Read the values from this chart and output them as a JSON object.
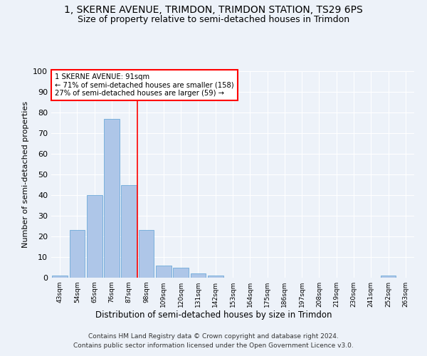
{
  "title": "1, SKERNE AVENUE, TRIMDON, TRIMDON STATION, TS29 6PS",
  "subtitle": "Size of property relative to semi-detached houses in Trimdon",
  "xlabel": "Distribution of semi-detached houses by size in Trimdon",
  "ylabel": "Number of semi-detached properties",
  "footnote1": "Contains HM Land Registry data © Crown copyright and database right 2024.",
  "footnote2": "Contains public sector information licensed under the Open Government Licence v3.0.",
  "bin_labels": [
    "43sqm",
    "54sqm",
    "65sqm",
    "76sqm",
    "87sqm",
    "98sqm",
    "109sqm",
    "120sqm",
    "131sqm",
    "142sqm",
    "153sqm",
    "164sqm",
    "175sqm",
    "186sqm",
    "197sqm",
    "208sqm",
    "219sqm",
    "230sqm",
    "241sqm",
    "252sqm",
    "263sqm"
  ],
  "bar_values": [
    1,
    23,
    40,
    77,
    45,
    23,
    6,
    5,
    2,
    1,
    0,
    0,
    0,
    0,
    0,
    0,
    0,
    0,
    0,
    1,
    0
  ],
  "bar_color": "#aec6e8",
  "bar_edge_color": "#5a9fd4",
  "vline_x": 4.5,
  "annotation_text": "1 SKERNE AVENUE: 91sqm\n← 71% of semi-detached houses are smaller (158)\n27% of semi-detached houses are larger (59) →",
  "annotation_box_color": "white",
  "annotation_box_edge_color": "red",
  "vline_color": "red",
  "ylim": [
    0,
    100
  ],
  "yticks": [
    0,
    10,
    20,
    30,
    40,
    50,
    60,
    70,
    80,
    90,
    100
  ],
  "background_color": "#edf2f9",
  "title_fontsize": 10,
  "subtitle_fontsize": 9
}
